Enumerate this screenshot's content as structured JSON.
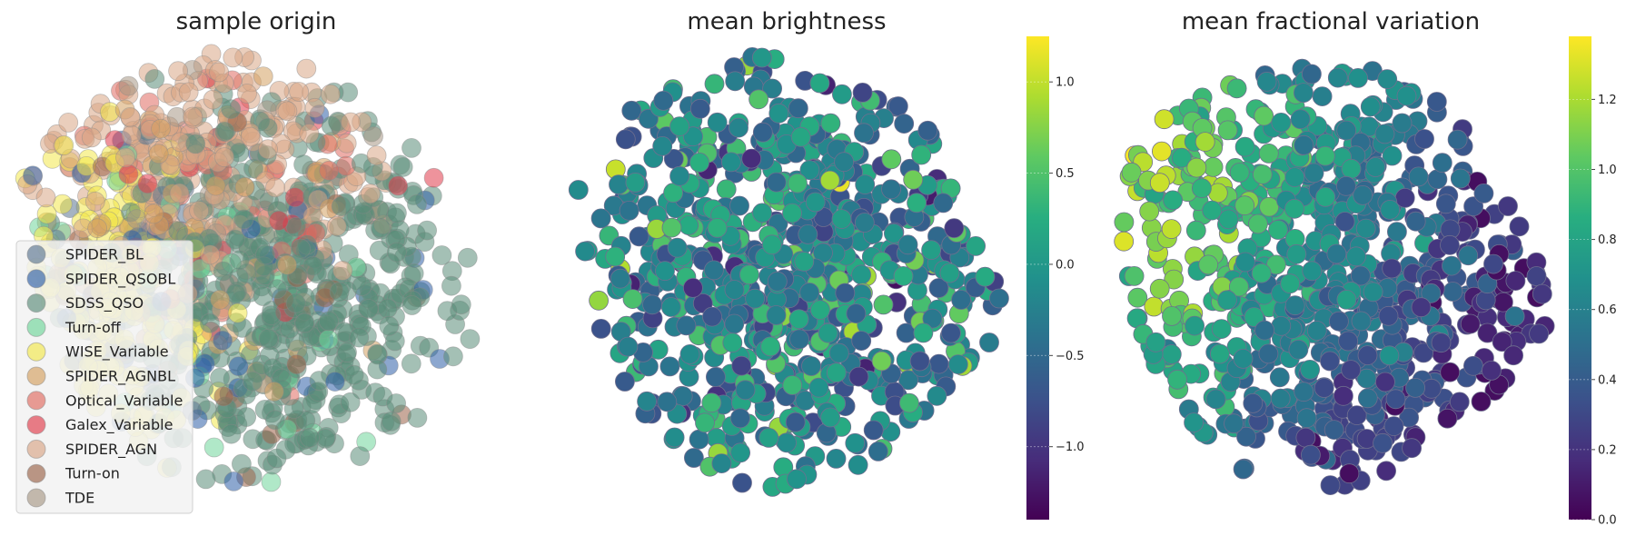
{
  "chart_data": [
    {
      "type": "scatter",
      "title": "sample origin",
      "legend_position": "lower-left",
      "series": [
        {
          "name": "SPIDER_BL",
          "color": "#5b7490",
          "count": 20
        },
        {
          "name": "SPIDER_QSOBL",
          "color": "#2e5fa8",
          "count": 45
        },
        {
          "name": "SDSS_QSO",
          "color": "#5a8c79",
          "count": 520
        },
        {
          "name": "Turn-off",
          "color": "#6fd69a",
          "count": 40
        },
        {
          "name": "WISE_Variable",
          "color": "#f2e84b",
          "count": 180
        },
        {
          "name": "SPIDER_AGNBL",
          "color": "#d4a060",
          "count": 55
        },
        {
          "name": "Optical_Variable",
          "color": "#e06a60",
          "count": 40
        },
        {
          "name": "Galex_Variable",
          "color": "#e03a4a",
          "count": 28
        },
        {
          "name": "SPIDER_AGN",
          "color": "#d9a585",
          "count": 260
        },
        {
          "name": "Turn-on",
          "color": "#9a6248",
          "count": 22
        },
        {
          "name": "TDE",
          "color": "#a89885",
          "count": 22
        }
      ]
    },
    {
      "type": "scatter",
      "title": "mean brightness",
      "colormap": "viridis",
      "colorbar": {
        "min": -1.4,
        "max": 1.25,
        "ticks": [
          -1.0,
          -0.5,
          0.0,
          0.5,
          1.0
        ],
        "tick_labels": [
          "−1.0",
          "−0.5",
          "0.0",
          "0.5",
          "1.0"
        ]
      },
      "value_range": [
        -1.4,
        1.25
      ]
    },
    {
      "type": "scatter",
      "title": "mean fractional variation",
      "colormap": "viridis",
      "colorbar": {
        "min": 0.0,
        "max": 1.38,
        "ticks": [
          0.0,
          0.2,
          0.4,
          0.6,
          0.8,
          1.0,
          1.2
        ],
        "tick_labels": [
          "0.0",
          "0.2",
          "0.4",
          "0.6",
          "0.8",
          "1.0",
          "1.2"
        ]
      },
      "value_range": [
        0.0,
        1.38
      ]
    }
  ]
}
